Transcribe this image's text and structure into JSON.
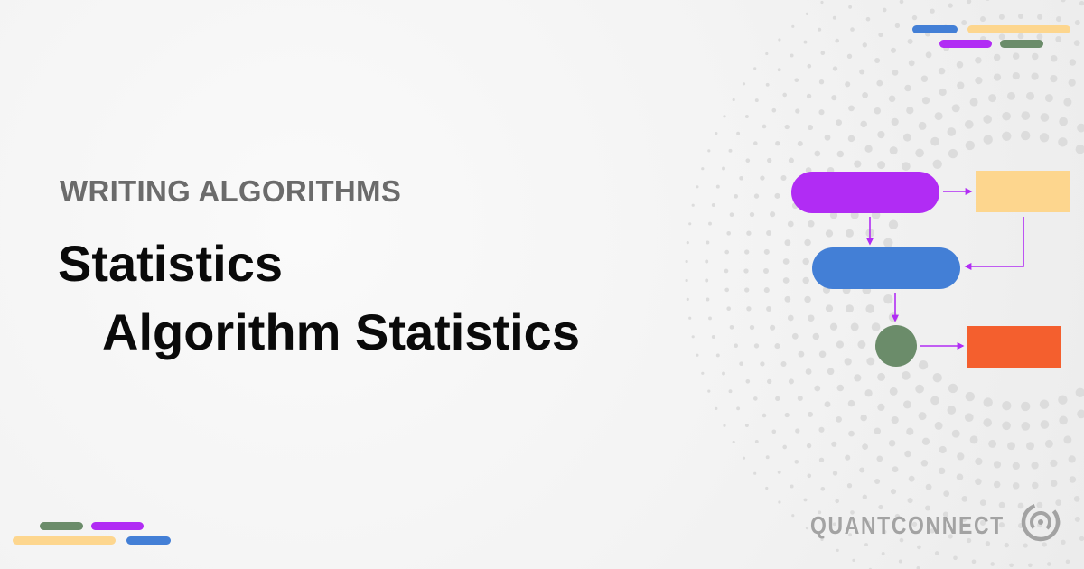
{
  "category": "WRITING ALGORITHMS",
  "title": "Statistics",
  "subtitle": "Algorithm Statistics",
  "brand": {
    "name": "QUANTCONNECT",
    "logo_icon": "quantconnect-logo-icon"
  },
  "colors": {
    "purple": "#b12cf4",
    "yellow": "#fdd68e",
    "blue": "#437fd6",
    "green": "#6b8c6a",
    "orange": "#f45f2e",
    "text_muted": "#6b6b6b",
    "text_dark": "#0a0a0a"
  }
}
